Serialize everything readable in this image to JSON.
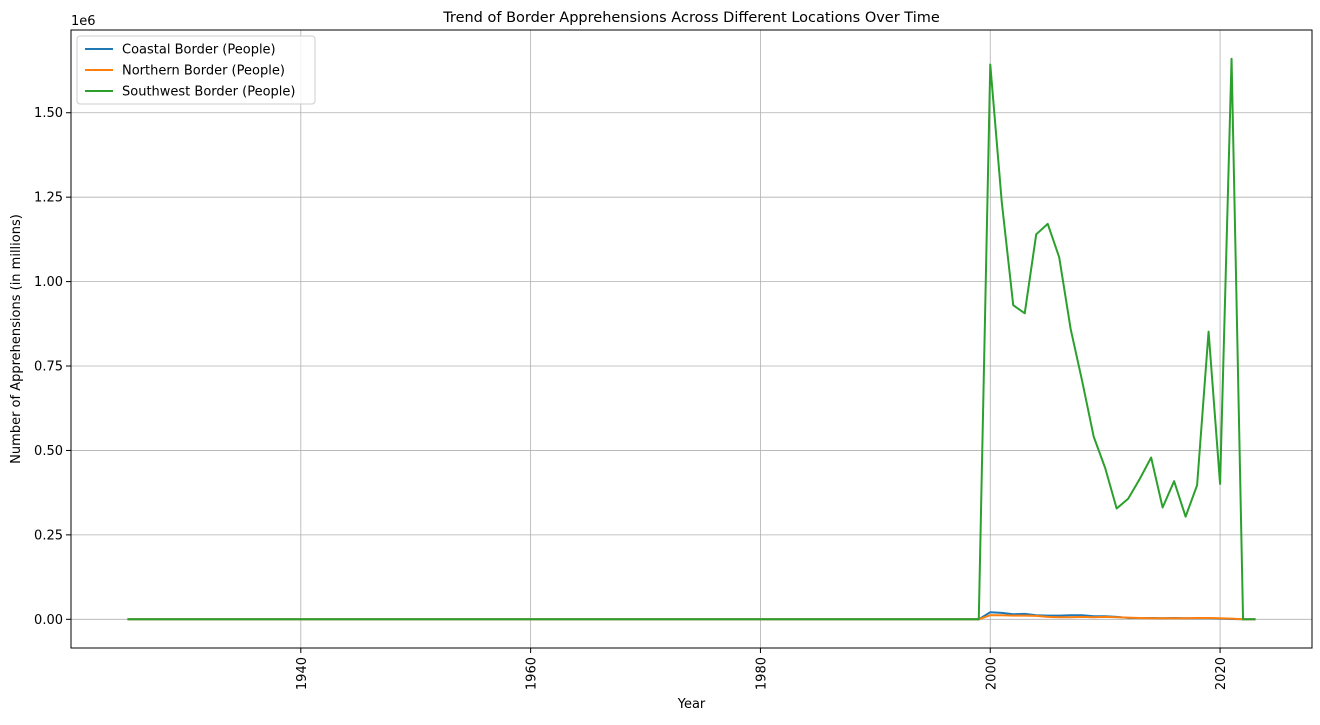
{
  "chart_data": {
    "type": "line",
    "title": "Trend of Border Apprehensions Across Different Locations Over Time",
    "xlabel": "Year",
    "ylabel": "Number of Apprehensions (in millions)",
    "y_offset_text": "1e6",
    "xlim": [
      1920,
      2028
    ],
    "ylim": [
      -85000,
      1745000
    ],
    "x_ticks": [
      1940,
      1960,
      1980,
      2000,
      2020
    ],
    "x_tick_labels": [
      "1940",
      "1960",
      "1980",
      "2000",
      "2020"
    ],
    "y_ticks": [
      0,
      250000,
      500000,
      750000,
      1000000,
      1250000,
      1500000
    ],
    "y_tick_labels": [
      "0.00",
      "0.25",
      "0.50",
      "0.75",
      "1.00",
      "1.25",
      "1.50"
    ],
    "grid": true,
    "legend_position": "top-left",
    "series": [
      {
        "name": "Coastal Border (People)",
        "color": "#1f77b4",
        "x": [
          1925,
          1999,
          2000,
          2001,
          2002,
          2003,
          2004,
          2005,
          2006,
          2007,
          2008,
          2009,
          2010,
          2011,
          2012,
          2013,
          2014,
          2015,
          2016,
          2017,
          2018,
          2019,
          2020,
          2021,
          2022,
          2023
        ],
        "y": [
          0,
          0,
          21000,
          19000,
          15000,
          16000,
          12000,
          11000,
          11000,
          12000,
          12000,
          9000,
          9000,
          7000,
          4000,
          4000,
          4000,
          3000,
          4000,
          3000,
          3000,
          3000,
          2000,
          1000,
          0,
          0
        ]
      },
      {
        "name": "Northern Border (People)",
        "color": "#ff7f0e",
        "x": [
          1925,
          1999,
          2000,
          2001,
          2002,
          2003,
          2004,
          2005,
          2006,
          2007,
          2008,
          2009,
          2010,
          2011,
          2012,
          2013,
          2014,
          2015,
          2016,
          2017,
          2018,
          2019,
          2020,
          2021,
          2022,
          2023
        ],
        "y": [
          0,
          0,
          12000,
          12000,
          11000,
          11000,
          10000,
          7000,
          6000,
          6000,
          7000,
          6000,
          7000,
          6000,
          5000,
          4000,
          3000,
          3000,
          3000,
          3000,
          4000,
          4000,
          3000,
          2000,
          0,
          0
        ]
      },
      {
        "name": "Southwest Border (People)",
        "color": "#2ca02c",
        "x": [
          1925,
          1999,
          2000,
          2001,
          2002,
          2003,
          2004,
          2005,
          2006,
          2007,
          2008,
          2009,
          2010,
          2011,
          2012,
          2013,
          2014,
          2015,
          2016,
          2017,
          2018,
          2019,
          2020,
          2021,
          2022,
          2023
        ],
        "y": [
          0,
          0,
          1643000,
          1236000,
          930000,
          906000,
          1140000,
          1171000,
          1072000,
          859000,
          705000,
          541000,
          448000,
          328000,
          357000,
          415000,
          479000,
          331000,
          409000,
          304000,
          397000,
          852000,
          401000,
          1660000,
          0,
          0
        ]
      }
    ]
  }
}
